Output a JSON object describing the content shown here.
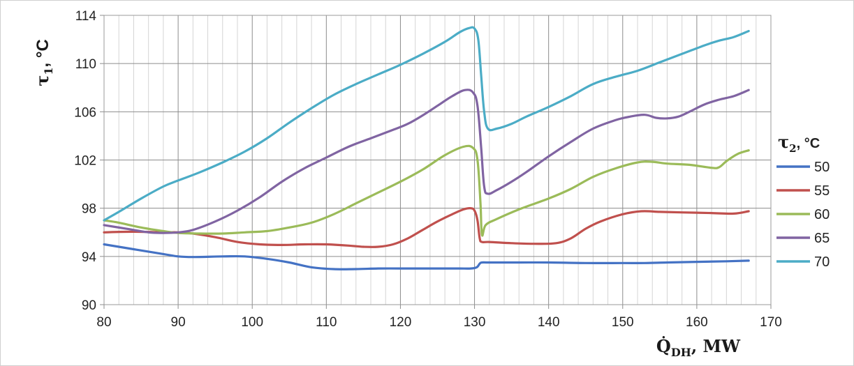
{
  "chart_data": {
    "type": "line",
    "title": "",
    "xlabel": "Q̇DH, MW",
    "xlabel_parts": {
      "symbol": "Q̇",
      "subscript": "DH",
      "unit": ", MW"
    },
    "ylabel": "τ1, °C",
    "ylabel_parts": {
      "symbol": "τ",
      "subscript": "1",
      "unit": ",  °C"
    },
    "xlim": [
      80,
      170
    ],
    "ylim": [
      90,
      114
    ],
    "x_ticks": [
      80,
      90,
      100,
      110,
      120,
      130,
      140,
      150,
      160,
      170
    ],
    "y_ticks": [
      90,
      94,
      98,
      102,
      106,
      110,
      114
    ],
    "x_minor_step": 2,
    "grid": true,
    "legend": {
      "position": "right",
      "title": "τ2, °C",
      "title_parts": {
        "symbol": "τ",
        "subscript": "2",
        "unit": ", °C"
      }
    },
    "series": [
      {
        "name": "50",
        "color": "#4472C4",
        "points": [
          [
            80,
            95
          ],
          [
            84,
            94.6
          ],
          [
            88,
            94.2
          ],
          [
            90,
            94
          ],
          [
            92,
            93.95
          ],
          [
            96,
            94
          ],
          [
            99,
            94
          ],
          [
            102,
            93.8
          ],
          [
            105,
            93.5
          ],
          [
            108,
            93.1
          ],
          [
            111,
            92.95
          ],
          [
            114,
            92.95
          ],
          [
            117,
            93
          ],
          [
            120,
            93
          ],
          [
            123,
            93
          ],
          [
            126,
            93
          ],
          [
            128,
            93
          ],
          [
            129.5,
            93
          ],
          [
            130.3,
            93.1
          ],
          [
            130.7,
            93.4
          ],
          [
            131,
            93.5
          ],
          [
            132,
            93.5
          ],
          [
            136,
            93.5
          ],
          [
            140,
            93.5
          ],
          [
            145,
            93.45
          ],
          [
            150,
            93.45
          ],
          [
            153,
            93.45
          ],
          [
            156,
            93.5
          ],
          [
            160,
            93.55
          ],
          [
            164,
            93.6
          ],
          [
            167,
            93.65
          ]
        ]
      },
      {
        "name": "55",
        "color": "#C0504D",
        "points": [
          [
            80,
            96
          ],
          [
            84,
            96.05
          ],
          [
            88,
            96
          ],
          [
            90,
            96
          ],
          [
            92,
            95.9
          ],
          [
            95,
            95.6
          ],
          [
            98,
            95.2
          ],
          [
            101,
            95
          ],
          [
            104,
            94.95
          ],
          [
            107,
            95
          ],
          [
            110,
            95
          ],
          [
            113,
            94.9
          ],
          [
            115,
            94.8
          ],
          [
            117,
            94.8
          ],
          [
            119,
            95
          ],
          [
            121,
            95.5
          ],
          [
            123,
            96.2
          ],
          [
            125,
            96.9
          ],
          [
            127,
            97.5
          ],
          [
            128.5,
            97.9
          ],
          [
            129.5,
            98
          ],
          [
            130,
            97.8
          ],
          [
            130.4,
            97
          ],
          [
            130.7,
            95.5
          ],
          [
            131,
            95.2
          ],
          [
            132,
            95.2
          ],
          [
            135,
            95.1
          ],
          [
            138,
            95.05
          ],
          [
            141,
            95.1
          ],
          [
            143,
            95.5
          ],
          [
            145,
            96.3
          ],
          [
            147,
            96.9
          ],
          [
            150,
            97.5
          ],
          [
            152.5,
            97.75
          ],
          [
            155,
            97.7
          ],
          [
            158,
            97.65
          ],
          [
            162,
            97.6
          ],
          [
            165,
            97.55
          ],
          [
            167,
            97.75
          ]
        ]
      },
      {
        "name": "60",
        "color": "#9BBB59",
        "points": [
          [
            80,
            97
          ],
          [
            82,
            96.8
          ],
          [
            85,
            96.4
          ],
          [
            88,
            96.1
          ],
          [
            90,
            95.95
          ],
          [
            93,
            95.9
          ],
          [
            96,
            95.9
          ],
          [
            99,
            96
          ],
          [
            102,
            96.1
          ],
          [
            105,
            96.4
          ],
          [
            108,
            96.8
          ],
          [
            111,
            97.5
          ],
          [
            114,
            98.4
          ],
          [
            117,
            99.3
          ],
          [
            120,
            100.2
          ],
          [
            123,
            101.2
          ],
          [
            126,
            102.4
          ],
          [
            128.5,
            103.1
          ],
          [
            129.8,
            103
          ],
          [
            130.4,
            102
          ],
          [
            130.8,
            98.5
          ],
          [
            131,
            95.8
          ],
          [
            131.5,
            96.6
          ],
          [
            133,
            97.1
          ],
          [
            136,
            97.9
          ],
          [
            140,
            98.8
          ],
          [
            143,
            99.6
          ],
          [
            146,
            100.6
          ],
          [
            149,
            101.3
          ],
          [
            152,
            101.8
          ],
          [
            154,
            101.85
          ],
          [
            156,
            101.7
          ],
          [
            159,
            101.6
          ],
          [
            162,
            101.35
          ],
          [
            163,
            101.4
          ],
          [
            164,
            101.9
          ],
          [
            165.5,
            102.5
          ],
          [
            167,
            102.8
          ]
        ]
      },
      {
        "name": "65",
        "color": "#8064A2",
        "points": [
          [
            80,
            96.6
          ],
          [
            83,
            96.3
          ],
          [
            86,
            96
          ],
          [
            88,
            95.95
          ],
          [
            90,
            96
          ],
          [
            92,
            96.2
          ],
          [
            95,
            96.9
          ],
          [
            98,
            97.8
          ],
          [
            101,
            98.9
          ],
          [
            104,
            100.2
          ],
          [
            107,
            101.3
          ],
          [
            110,
            102.2
          ],
          [
            113,
            103.1
          ],
          [
            116,
            103.8
          ],
          [
            119,
            104.5
          ],
          [
            121,
            105
          ],
          [
            123,
            105.7
          ],
          [
            125,
            106.5
          ],
          [
            127,
            107.3
          ],
          [
            128.7,
            107.8
          ],
          [
            129.8,
            107.6
          ],
          [
            130.4,
            106.5
          ],
          [
            130.9,
            103
          ],
          [
            131.3,
            99.8
          ],
          [
            131.8,
            99.2
          ],
          [
            133,
            99.5
          ],
          [
            135,
            100.2
          ],
          [
            137,
            101
          ],
          [
            140,
            102.3
          ],
          [
            143,
            103.5
          ],
          [
            146,
            104.6
          ],
          [
            149,
            105.3
          ],
          [
            151,
            105.6
          ],
          [
            153,
            105.75
          ],
          [
            154.5,
            105.5
          ],
          [
            156,
            105.45
          ],
          [
            157.5,
            105.6
          ],
          [
            159,
            106
          ],
          [
            161,
            106.6
          ],
          [
            163,
            107
          ],
          [
            165,
            107.3
          ],
          [
            167,
            107.8
          ]
        ]
      },
      {
        "name": "70",
        "color": "#4BACC6",
        "points": [
          [
            80,
            97
          ],
          [
            82,
            97.7
          ],
          [
            85,
            98.8
          ],
          [
            88,
            99.8
          ],
          [
            90,
            100.3
          ],
          [
            93,
            101
          ],
          [
            96,
            101.8
          ],
          [
            99,
            102.7
          ],
          [
            102,
            103.8
          ],
          [
            105,
            105.1
          ],
          [
            108,
            106.3
          ],
          [
            111,
            107.4
          ],
          [
            114,
            108.3
          ],
          [
            117,
            109.1
          ],
          [
            120,
            109.9
          ],
          [
            123,
            110.8
          ],
          [
            126,
            111.8
          ],
          [
            128,
            112.6
          ],
          [
            129.3,
            112.95
          ],
          [
            130,
            112.9
          ],
          [
            130.5,
            112
          ],
          [
            130.9,
            109
          ],
          [
            131.3,
            106
          ],
          [
            131.8,
            104.6
          ],
          [
            133,
            104.6
          ],
          [
            135,
            105
          ],
          [
            137,
            105.6
          ],
          [
            140,
            106.4
          ],
          [
            143,
            107.3
          ],
          [
            146,
            108.3
          ],
          [
            149,
            108.9
          ],
          [
            152,
            109.4
          ],
          [
            155,
            110.1
          ],
          [
            158,
            110.8
          ],
          [
            161,
            111.5
          ],
          [
            163,
            111.9
          ],
          [
            165,
            112.2
          ],
          [
            167,
            112.7
          ]
        ]
      }
    ]
  }
}
